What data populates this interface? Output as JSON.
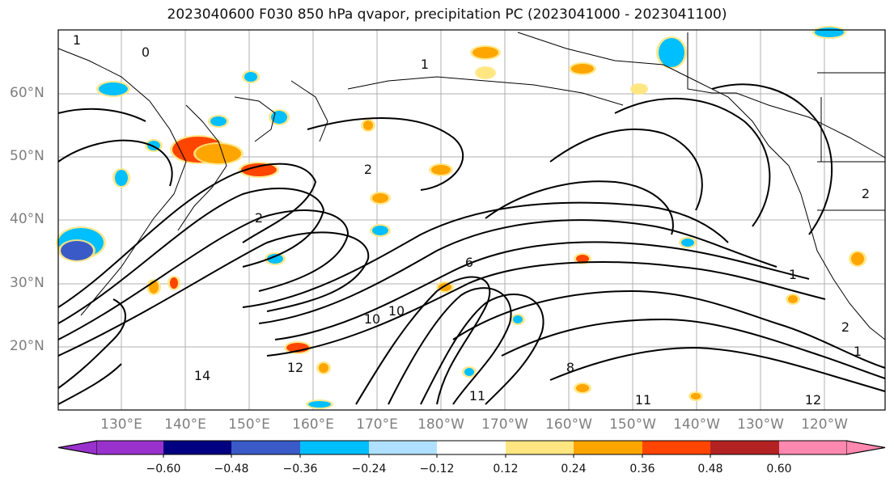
{
  "title": "2023040600 F030 850 hPa qvapor, precipitation PC (2023041000 - 2023041100)",
  "map": {
    "lat_labels": [
      "60°N",
      "50°N",
      "40°N",
      "30°N",
      "20°N"
    ],
    "lon_labels": [
      "130°E",
      "140°E",
      "150°E",
      "160°E",
      "170°E",
      "180°W",
      "170°W",
      "160°W",
      "150°W",
      "140°W",
      "130°W",
      "120°W"
    ],
    "contour_labels": [
      "1",
      "1",
      "1",
      "2",
      "2",
      "2",
      "6",
      "8",
      "10",
      "10",
      "11",
      "11",
      "12",
      "12",
      "14",
      "1",
      "2",
      "0"
    ]
  },
  "colorbar": {
    "tick_labels": [
      "−0.60",
      "−0.48",
      "−0.36",
      "−0.24",
      "−0.12",
      "0.12",
      "0.24",
      "0.36",
      "0.48",
      "0.60"
    ],
    "colors": [
      "#9932cc",
      "#000080",
      "#3a5bc7",
      "#00bfff",
      "#b0e0ff",
      "#ffffff",
      "#ffe680",
      "#ffa500",
      "#ff4500",
      "#b22222",
      "#ff88b0"
    ]
  }
}
